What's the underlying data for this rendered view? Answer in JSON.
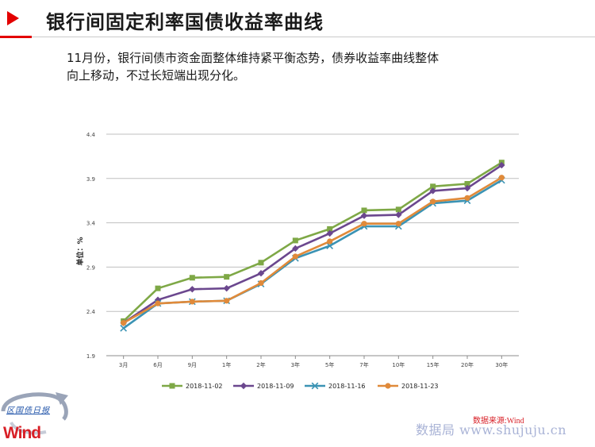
{
  "header": {
    "title": "银行间固定利率国债收益率曲线",
    "summary_line1": "11月份，银行间债市资金面整体维持紧平衡态势，债券收益率曲线整体",
    "summary_line2": "向上移动，不过长短端出现分化。"
  },
  "footer": {
    "source": "数据来源:Wind",
    "watermark": "数据局 www.shujuju.cn",
    "logo_text": "Wind",
    "logo_caption": "区国债日报"
  },
  "colors": {
    "accent": "#e30000",
    "series": [
      "#7ea846",
      "#6b478e",
      "#3b93b4",
      "#e08a3a"
    ]
  },
  "chart_data": {
    "type": "line",
    "title": "",
    "xlabel": "",
    "ylabel": "单位：%",
    "ylim": [
      1.9,
      4.4
    ],
    "yticks": [
      "1.9",
      "2.4",
      "2.9",
      "3.4",
      "3.9",
      "4.4"
    ],
    "grid": true,
    "legend_position": "bottom",
    "categories": [
      "3月",
      "6月",
      "9月",
      "1年",
      "2年",
      "3年",
      "5年",
      "7年",
      "10年",
      "15年",
      "20年",
      "30年"
    ],
    "series": [
      {
        "name": "2018-11-02",
        "marker": "square",
        "values": [
          2.29,
          2.66,
          2.78,
          2.79,
          2.95,
          3.2,
          3.33,
          3.54,
          3.55,
          3.81,
          3.84,
          4.08
        ]
      },
      {
        "name": "2018-11-09",
        "marker": "diamond",
        "values": [
          2.27,
          2.53,
          2.65,
          2.66,
          2.83,
          3.11,
          3.28,
          3.48,
          3.49,
          3.76,
          3.79,
          4.05
        ]
      },
      {
        "name": "2018-11-16",
        "marker": "x",
        "values": [
          2.21,
          2.49,
          2.51,
          2.52,
          2.71,
          3.0,
          3.14,
          3.36,
          3.36,
          3.62,
          3.65,
          3.88
        ]
      },
      {
        "name": "2018-11-23",
        "marker": "circle",
        "values": [
          2.27,
          2.49,
          2.51,
          2.52,
          2.72,
          3.02,
          3.19,
          3.39,
          3.39,
          3.64,
          3.68,
          3.91
        ]
      }
    ]
  }
}
